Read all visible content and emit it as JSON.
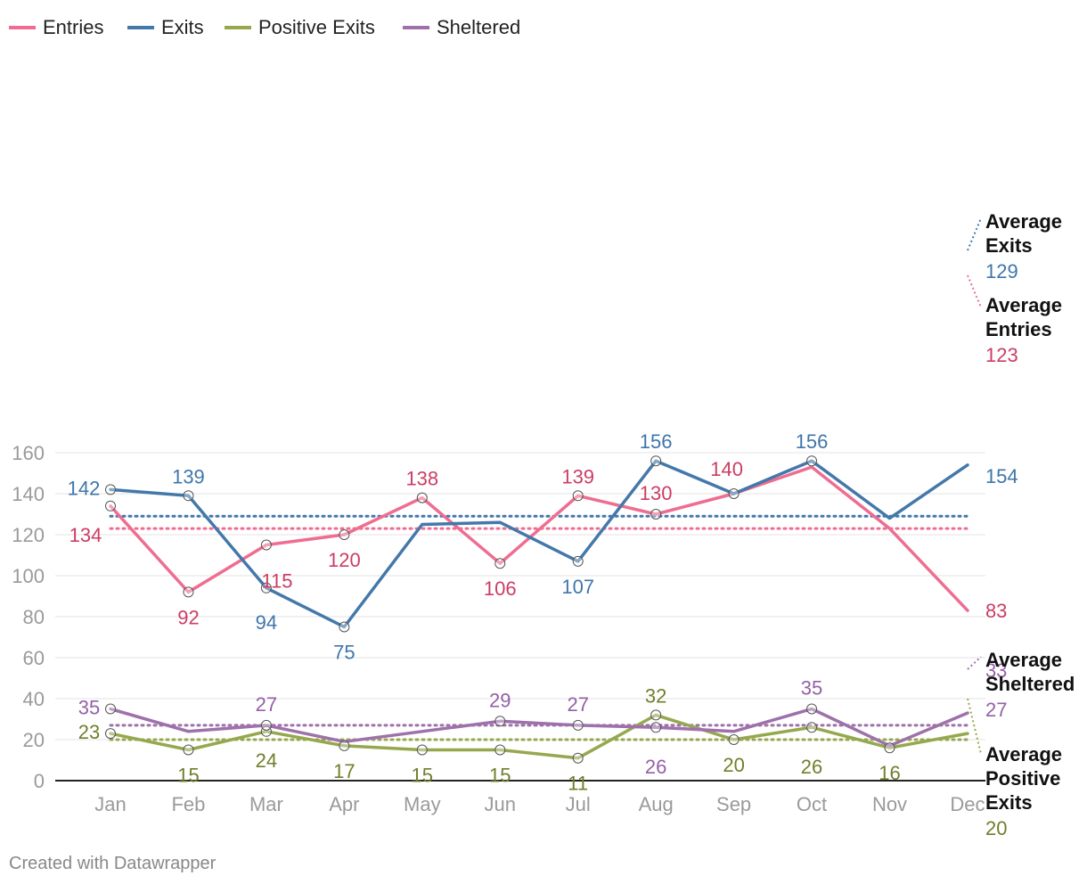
{
  "chart_data": {
    "type": "line",
    "title": "",
    "xlabel": "",
    "ylabel": "",
    "ylim": [
      0,
      160
    ],
    "yticks": [
      0,
      20,
      40,
      60,
      80,
      100,
      120,
      140,
      160
    ],
    "categories": [
      "Jan",
      "Feb",
      "Mar",
      "Apr",
      "May",
      "Jun",
      "Jul",
      "Aug",
      "Sep",
      "Oct",
      "Nov",
      "Dec"
    ],
    "grid": true,
    "legend_position": "top-left",
    "series": [
      {
        "name": "Entries",
        "color": "#ee6d91",
        "label_color": "#cc3d64",
        "values": [
          134,
          92,
          115,
          120,
          138,
          106,
          139,
          130,
          140,
          153,
          123,
          83
        ]
      },
      {
        "name": "Exits",
        "color": "#4478aa",
        "label_color": "#3f76aa",
        "values": [
          142,
          139,
          94,
          75,
          125,
          126,
          107,
          156,
          140,
          156,
          128,
          154
        ]
      },
      {
        "name": "Positive Exits",
        "color": "#96a84e",
        "label_color": "#6f7f2b",
        "values": [
          23,
          15,
          24,
          17,
          15,
          15,
          11,
          32,
          20,
          26,
          16,
          23
        ]
      },
      {
        "name": "Sheltered",
        "color": "#9e71ab",
        "label_color": "#9460a6",
        "values": [
          35,
          24,
          27,
          19,
          24,
          29,
          27,
          26,
          24,
          35,
          17,
          33
        ]
      }
    ],
    "point_labels": [
      {
        "series": 0,
        "index": 0,
        "text": "134"
      },
      {
        "series": 0,
        "index": 1,
        "text": "92"
      },
      {
        "series": 0,
        "index": 2,
        "text": "115"
      },
      {
        "series": 0,
        "index": 3,
        "text": "120"
      },
      {
        "series": 0,
        "index": 4,
        "text": "138"
      },
      {
        "series": 0,
        "index": 5,
        "text": "106"
      },
      {
        "series": 0,
        "index": 6,
        "text": "139"
      },
      {
        "series": 0,
        "index": 7,
        "text": "130"
      },
      {
        "series": 0,
        "index": 8,
        "text": "140"
      },
      {
        "series": 0,
        "index": 11,
        "text": "83"
      },
      {
        "series": 1,
        "index": 0,
        "text": "142"
      },
      {
        "series": 1,
        "index": 1,
        "text": "139"
      },
      {
        "series": 1,
        "index": 2,
        "text": "94"
      },
      {
        "series": 1,
        "index": 3,
        "text": "75"
      },
      {
        "series": 1,
        "index": 6,
        "text": "107"
      },
      {
        "series": 1,
        "index": 7,
        "text": "156"
      },
      {
        "series": 1,
        "index": 9,
        "text": "156"
      },
      {
        "series": 1,
        "index": 11,
        "text": "154"
      },
      {
        "series": 2,
        "index": 0,
        "text": "23"
      },
      {
        "series": 2,
        "index": 1,
        "text": "15"
      },
      {
        "series": 2,
        "index": 2,
        "text": "24"
      },
      {
        "series": 2,
        "index": 3,
        "text": "17"
      },
      {
        "series": 2,
        "index": 4,
        "text": "15"
      },
      {
        "series": 2,
        "index": 5,
        "text": "15"
      },
      {
        "series": 2,
        "index": 6,
        "text": "11"
      },
      {
        "series": 2,
        "index": 7,
        "text": "32"
      },
      {
        "series": 2,
        "index": 8,
        "text": "20"
      },
      {
        "series": 2,
        "index": 9,
        "text": "26"
      },
      {
        "series": 2,
        "index": 10,
        "text": "16"
      },
      {
        "series": 3,
        "index": 0,
        "text": "35"
      },
      {
        "series": 3,
        "index": 2,
        "text": "27"
      },
      {
        "series": 3,
        "index": 5,
        "text": "29"
      },
      {
        "series": 3,
        "index": 6,
        "text": "27"
      },
      {
        "series": 3,
        "index": 7,
        "text": "26"
      },
      {
        "series": 3,
        "index": 9,
        "text": "35"
      },
      {
        "series": 3,
        "index": 11,
        "text": "33"
      }
    ],
    "averages": [
      {
        "series": 1,
        "value": 129,
        "label_lines": [
          "Average",
          "Exits"
        ],
        "value_text": "129"
      },
      {
        "series": 0,
        "value": 123,
        "label_lines": [
          "Average",
          "Entries"
        ],
        "value_text": "123"
      },
      {
        "series": 3,
        "value": 27,
        "label_lines": [
          "Average",
          "Sheltered"
        ],
        "value_text": "27"
      },
      {
        "series": 2,
        "value": 20,
        "label_lines": [
          "Average",
          "Positive",
          "Exits"
        ],
        "value_text": "20"
      }
    ]
  },
  "credit": "Created with Datawrapper"
}
